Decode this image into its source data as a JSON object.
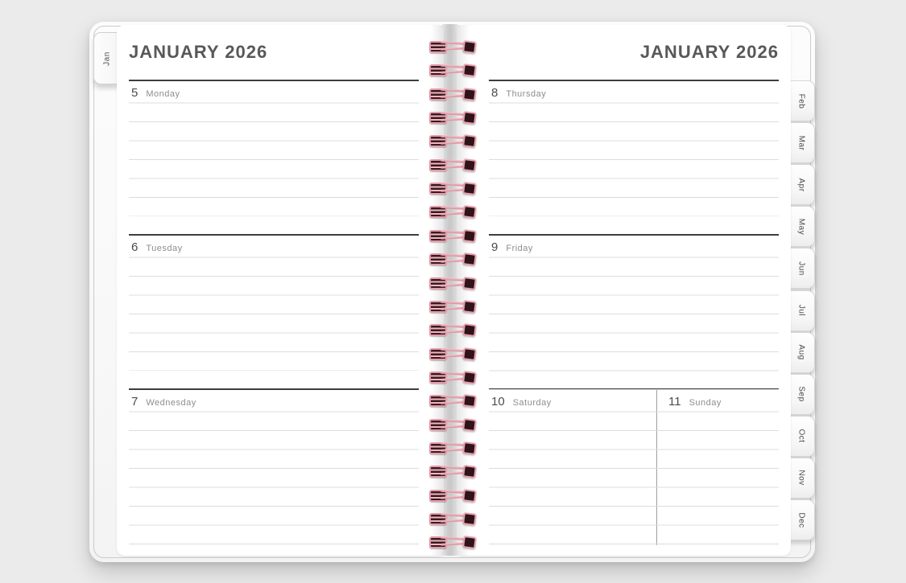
{
  "planner": {
    "left_tab": "Jan",
    "month_tabs": [
      "Feb",
      "Mar",
      "Apr",
      "May",
      "Jun",
      "Jul",
      "Aug",
      "Sep",
      "Oct",
      "Nov",
      "Dec"
    ],
    "left_page": {
      "title": "JANUARY 2026",
      "sections": [
        {
          "date": "5",
          "day": "Monday"
        },
        {
          "date": "6",
          "day": "Tuesday"
        },
        {
          "date": "7",
          "day": "Wednesday"
        }
      ]
    },
    "right_page": {
      "title": "JANUARY 2026",
      "sections": [
        {
          "date": "8",
          "day": "Thursday"
        },
        {
          "date": "9",
          "day": "Friday"
        },
        {
          "date": "10",
          "day": "Saturday"
        },
        {
          "date": "11",
          "day": "Sunday"
        }
      ]
    },
    "colors": {
      "background": "#ebebeb",
      "page": "#ffffff",
      "title_text": "#57585a",
      "day_number": "#4b4b4c",
      "day_name": "#8d8d8d",
      "header_rule": "#3d3d3d",
      "ruled_line": "#dcdcdc",
      "coil_pink": "#eba6b1",
      "coil_dark": "#2e141a"
    }
  }
}
